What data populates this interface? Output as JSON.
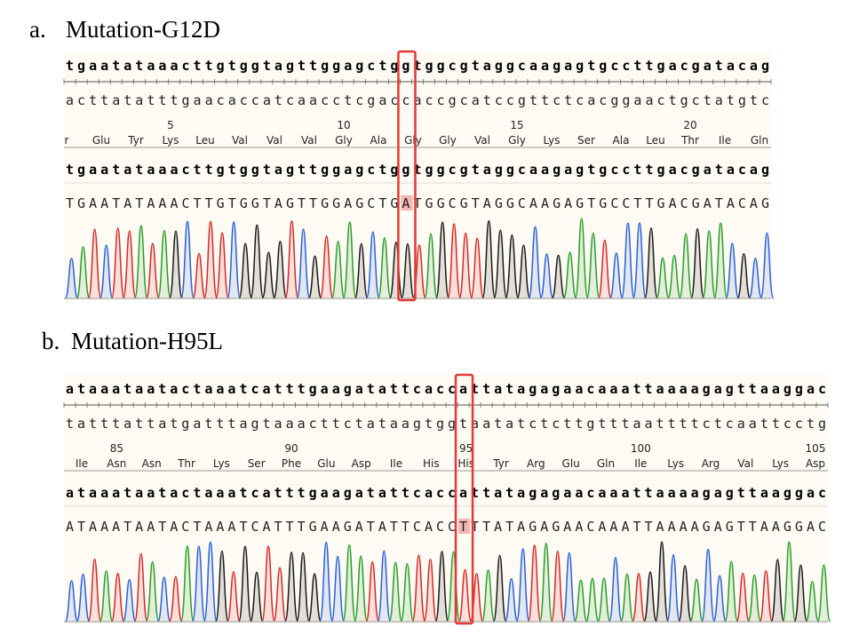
{
  "panels": [
    {
      "label": "a.",
      "title": "Mutation-G12D",
      "reference": "tgaatataaacttgtggtagttggagctggtggcgtaggcaagagtgccttgacgatacag",
      "complement": "acttatatttgaacaccatcaacctcgaccaccgcatccgttctcacggaactgctatgtc",
      "positions": [
        5,
        10,
        15,
        20
      ],
      "amino_acids": [
        "r",
        "Glu",
        "Tyr",
        "Lys",
        "Leu",
        "Val",
        "Val",
        "Val",
        "Gly",
        "Ala",
        "Gly",
        "Gly",
        "Val",
        "Gly",
        "Lys",
        "Ser",
        "Ala",
        "Leu",
        "Thr",
        "Ile",
        "Gln"
      ],
      "read": "tgaatataaacttgtggtagttggagctggtggcgtaggcaagagtgccttgacgatacag",
      "called": "TGAATATAAACTTGTGGTAGTTGGAGCTGATGGCGTAGGCAAGAGTGCCTTGACGATACAG"
    },
    {
      "label": "b.",
      "title": "Mutation-H95L",
      "reference": "ataaataatactaaatcatttgaagatattcaccattatagagaacaaattaaaagagttaaggac",
      "complement": "tatttattatgatttagtaaacttctataagtggtaatatctcttgtttaattttctcaattcctg",
      "positions": [
        85,
        90,
        95,
        100,
        105
      ],
      "amino_acids": [
        "Ile",
        "Asn",
        "Asn",
        "Thr",
        "Lys",
        "Ser",
        "Phe",
        "Glu",
        "Asp",
        "Ile",
        "His",
        "His",
        "Tyr",
        "Arg",
        "Glu",
        "Gln",
        "Ile",
        "Lys",
        "Arg",
        "Val",
        "Lys",
        "Asp"
      ],
      "read": "ataaataatactaaatcatttgaagatattcaccattatagagaacaaattaaaagagttaaggac",
      "called": "ATAAATAATACTAAATCATTTGAAGATATTCACCTTTATAGAGAACAAATTAAAAGAGTTAAGGAC"
    }
  ]
}
